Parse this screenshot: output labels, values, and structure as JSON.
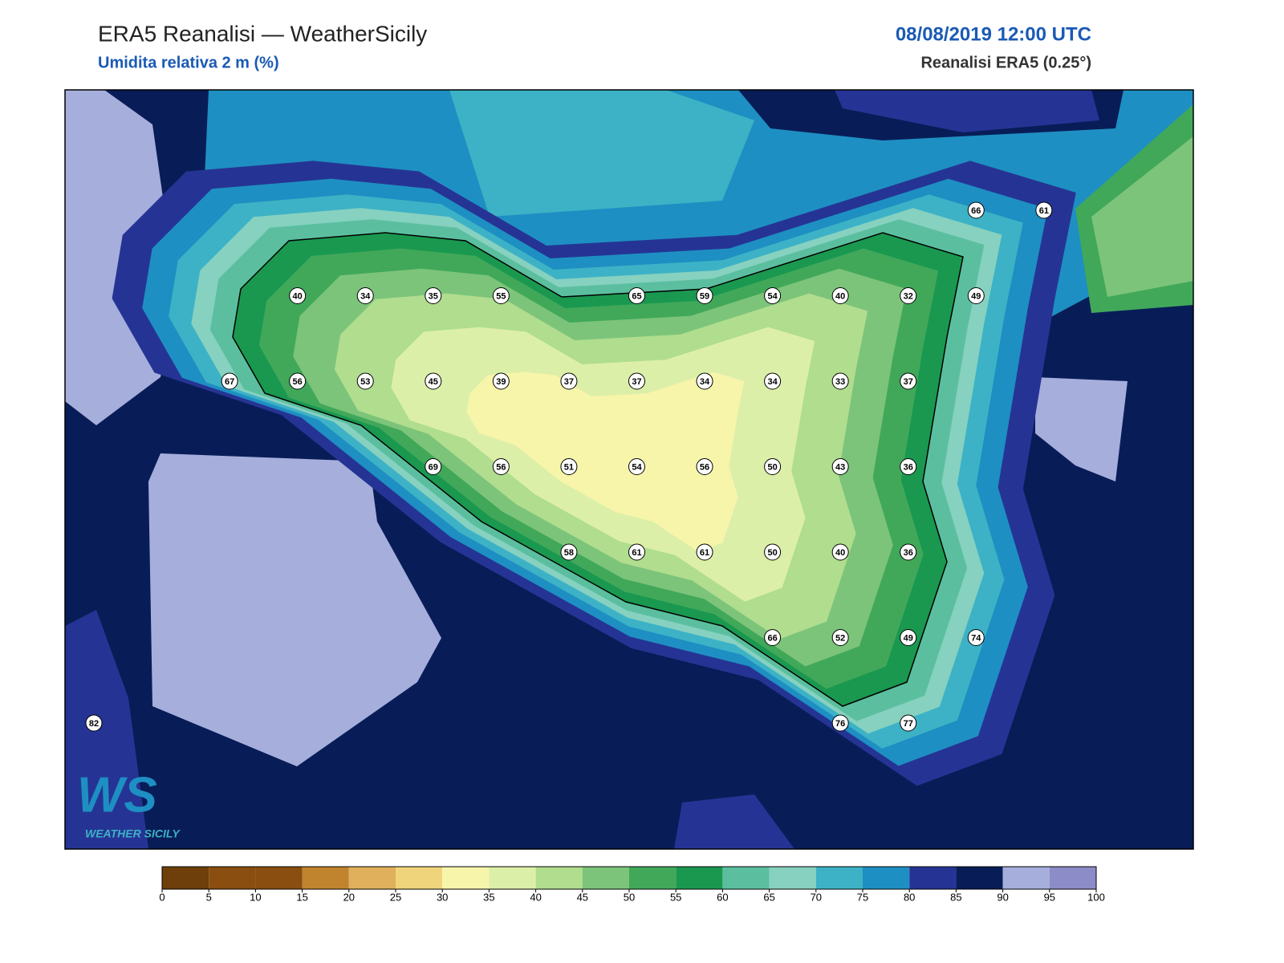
{
  "header": {
    "title": "ERA5 Reanalisi — WeatherSicily",
    "subtitle": "Umidita relativa 2 m (%)",
    "date": "08/08/2019 12:00 UTC",
    "source": "Reanalisi ERA5 (0.25°)"
  },
  "map": {
    "grid": [
      [
        null,
        null,
        null,
        null,
        null,
        null,
        null,
        null,
        null,
        null,
        null,
        null,
        null,
        66,
        61
      ],
      [
        null,
        null,
        null,
        40,
        34,
        35,
        55,
        null,
        65,
        59,
        54,
        40,
        32,
        49,
        null
      ],
      [
        null,
        null,
        67,
        56,
        53,
        45,
        39,
        37,
        37,
        34,
        34,
        33,
        37,
        null,
        null
      ],
      [
        null,
        null,
        null,
        null,
        null,
        69,
        56,
        51,
        54,
        56,
        50,
        43,
        36,
        null,
        null
      ],
      [
        null,
        null,
        null,
        null,
        null,
        null,
        null,
        58,
        61,
        61,
        50,
        40,
        36,
        null,
        null
      ],
      [
        null,
        null,
        null,
        null,
        null,
        null,
        null,
        null,
        null,
        null,
        66,
        52,
        49,
        74,
        null
      ],
      [
        82,
        null,
        null,
        null,
        null,
        null,
        null,
        null,
        null,
        null,
        null,
        76,
        77,
        null,
        null
      ]
    ],
    "colorbar": {
      "ticks": [
        0,
        5,
        10,
        15,
        20,
        25,
        30,
        35,
        40,
        45,
        50,
        55,
        60,
        65,
        70,
        75,
        80,
        85,
        90,
        95,
        100
      ],
      "colors": [
        "#6e3f0a",
        "#8a4e10",
        "#8a4e10",
        "#c0832e",
        "#e0b05c",
        "#f0d47c",
        "#f7f5aa",
        "#dcefa8",
        "#b0dd8e",
        "#7cc47a",
        "#41a85a",
        "#1a9850",
        "#5bbf9f",
        "#86d1c0",
        "#3db2c6",
        "#1e8fc2",
        "#253494",
        "#081d58",
        "#a6aedc",
        "#8c8cc8"
      ]
    }
  },
  "logo": {
    "mark": "WS",
    "caption": "WEATHER SICILY"
  }
}
